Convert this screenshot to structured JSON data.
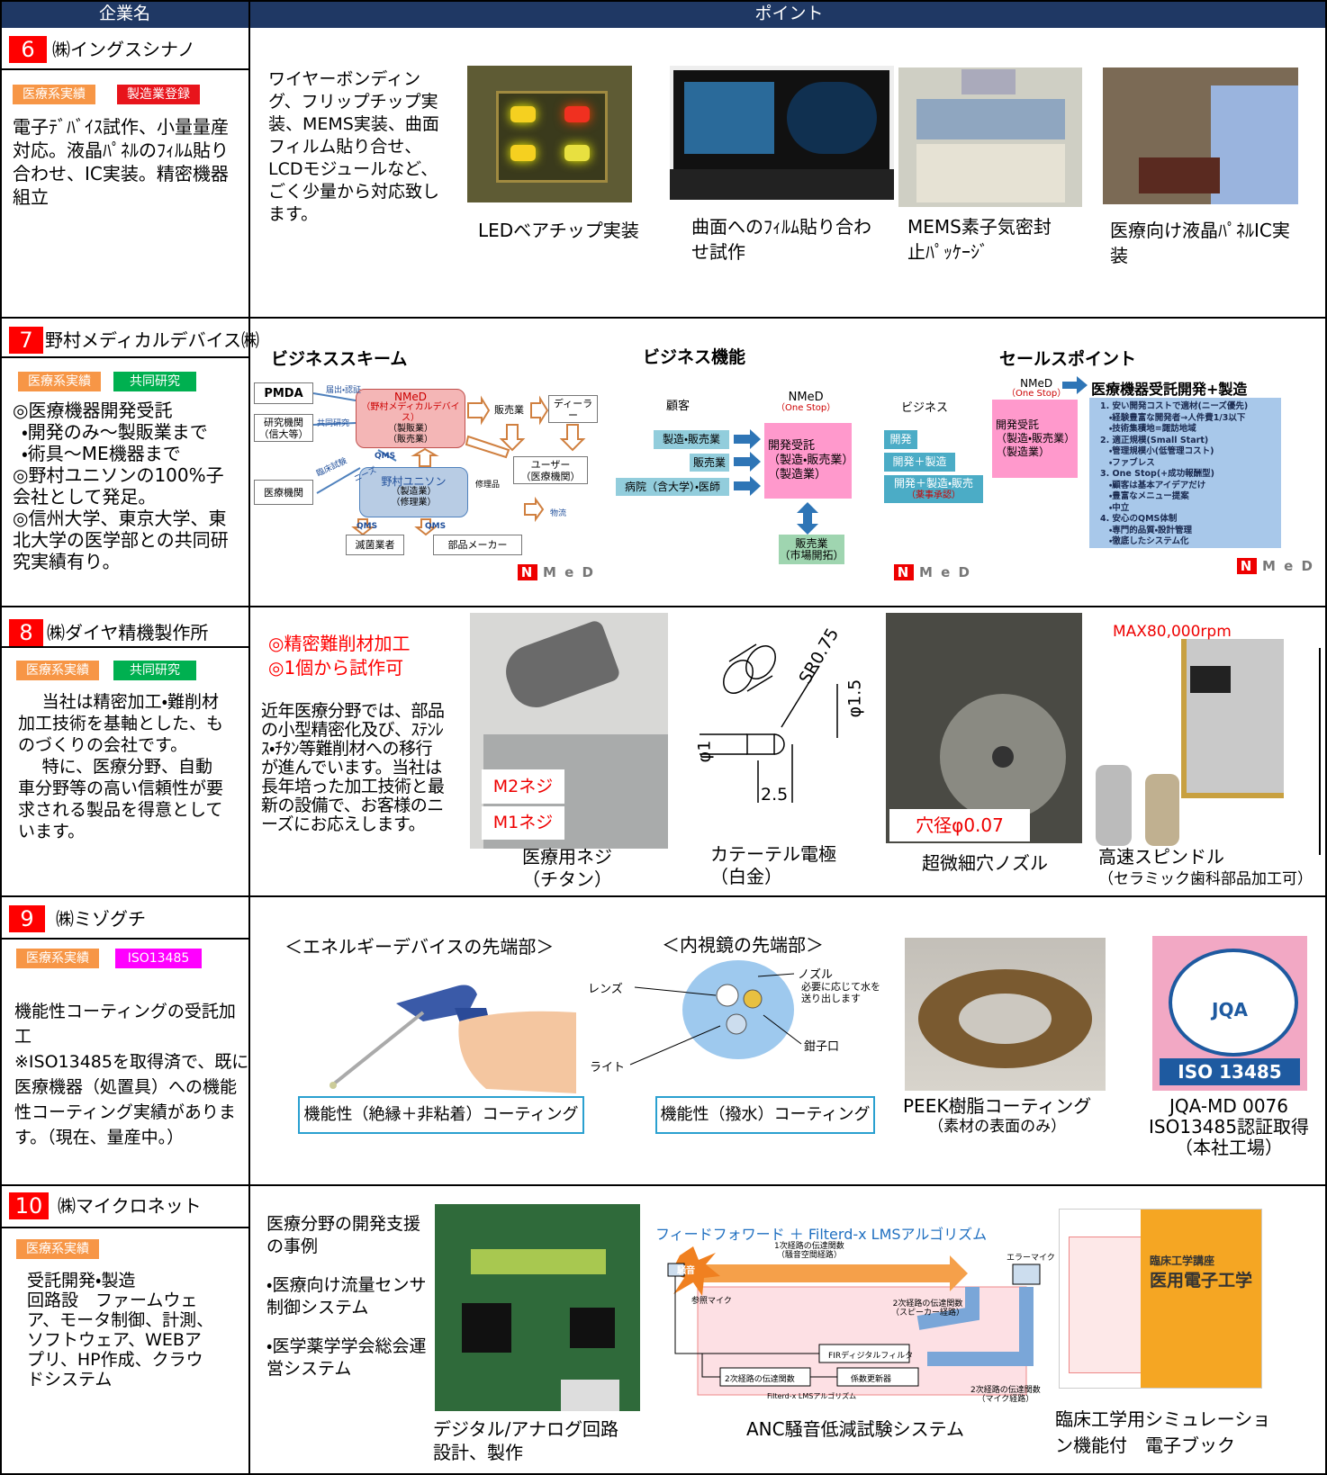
{
  "header": {
    "company": "企業名",
    "point": "ポイント"
  },
  "logo": {
    "n": "N",
    "med": "M e D"
  },
  "rows": [
    {
      "number": "6",
      "name": "㈱イングスシナノ",
      "tags": [
        "医療系実績",
        "製造業登録"
      ],
      "description": "電子ﾃﾞﾊﾞｲｽ試作、小量量産対応。液晶ﾊﾟﾈﾙのﾌｨﾙﾑ貼り合わせ、IC実装。精密機器組立",
      "text": "ワイヤーボンディング、フリップチップ実装、MEMS実装、曲面フィルム貼り合せ、 LCDモジュールなど、ごく少量から対応致します。",
      "captions": [
        "LEDベアチップ実装",
        "曲面へのﾌｨﾙﾑ貼り合わせ試作",
        "MEMS素子気密封止ﾊﾟｯｹｰｼﾞ",
        "医療向け液晶ﾊﾟﾈﾙIC実装"
      ]
    },
    {
      "number": "7",
      "name": "野村メディカルデバイス㈱",
      "tags": [
        "医療系実績",
        "共同研究"
      ],
      "description": [
        "◎医療機器開発受託",
        "・開発のみ～製販業まで",
        "・術具～ME機器まで",
        "◎野村ユニソンの100%子会社として発足。",
        "◎信州大学、東京大学、東北大学の医学部との共同研究実績有り。"
      ],
      "headings": [
        "ビジネススキーム",
        "ビジネス機能",
        "セールスポイント"
      ],
      "scheme": {
        "pmda": "PMDA",
        "research": [
          "研究機関",
          "（信大等）"
        ],
        "hospital": "医療機関",
        "nmed": [
          "NMeD",
          "（野村メディカルデバイス）",
          "（製販業）",
          "（販売業）"
        ],
        "unison": [
          "野村ユニソン",
          "（製造業）",
          "（修理業）"
        ],
        "sales": "販売業",
        "dealer": "ディーラー",
        "user": [
          "ユーザー",
          "（医療機関）"
        ],
        "sterilizer": "滅菌業者",
        "parts": "部品メーカー",
        "labels": [
          "届出・認証",
          "共同研究",
          "臨床試験",
          "ニーズ",
          "QMS",
          "修理品",
          "物流",
          "QMS",
          "QMS"
        ]
      },
      "function": {
        "customer": "顧客",
        "nmed": [
          "NMeD",
          "（One Stop）"
        ],
        "business": "ビジネス",
        "customers": [
          "製造・販売業",
          "販売業",
          "病院（含大学）・医師"
        ],
        "service": [
          "開発受託",
          "（製造・販売業）",
          "（製造業）"
        ],
        "outputs": [
          "開発",
          "開発＋製造",
          "開発＋製造・販売"
        ],
        "approval": "（薬事承認）",
        "market": [
          "販売業",
          "（市場開拓）"
        ]
      },
      "sales": {
        "nmed": [
          "NMeD",
          "（One Stop）"
        ],
        "headline": "医療機器受託開発+製造",
        "service": [
          "開発受託",
          "（製造・販売業）",
          "（製造業）"
        ],
        "points": [
          "1. 安い開発コストで適材(ニーズ優先)",
          "・経験豊富な開発者→人件費1/3以下",
          "・技術集積地=諏訪地域",
          "2. 適正規模(Small Start)",
          "・管理規模小(低管理コスト)",
          "・ファブレス",
          "3. One Stop(+成功報酬型)",
          "・顧客は基本アイデアだけ",
          "・豊富なメニュー提案",
          "・中立",
          "4. 安心のQMS体制",
          "・専門的品質・設計管理",
          "・徹底したシステム化"
        ]
      }
    },
    {
      "number": "8",
      "name": "㈱ダイヤ精機製作所",
      "tags": [
        "医療系実績",
        "共同研究"
      ],
      "description": [
        "当社は精密加工・難削材加工技術を基軸とした、ものづくりの会社です。",
        "特に、医療分野、自動車分野等の高い信頼性が要求される製品を得意としています。"
      ],
      "highlights": [
        "◎精密難削材加工",
        "◎1個から試作可"
      ],
      "text": "近年医療分野では、部品の小型精密化及び、ｽﾃﾝﾚｽ・ﾁﾀﾝ等難削材への移行が進んでいます。当社は長年培った加工技術と最新の設備で、お客様のニーズにお応えします。",
      "labels": [
        "M2ネジ",
        "M1ネジ",
        "穴径φ0.07",
        "MAX80,000rpm"
      ],
      "dimensions": [
        "SR0.75",
        "φ1.5",
        "φ1",
        "2.5"
      ],
      "captions": [
        [
          "医療用ネジ",
          "（チタン）"
        ],
        [
          "カテーテル電極",
          "（白金）"
        ],
        [
          "超微細穴ノズル"
        ],
        [
          "高速スピンドル",
          "（セラミック歯科部品加工可）"
        ]
      ]
    },
    {
      "number": "9",
      "name": "㈱ミゾグチ",
      "tags": [
        "医療系実績",
        "ISO13485"
      ],
      "description": [
        "機能性コーティングの受託加工",
        "※ISO13485を取得済で、既に医療機器（処置具）への機能性コーティング実績があります。（現在、量産中。）"
      ],
      "headings": [
        "＜エネルギーデバイスの先端部＞",
        "＜内視鏡の先端部＞"
      ],
      "coatings": [
        "機能性（絶縁＋非粘着）コーティング",
        "機能性（撥水）コーティング"
      ],
      "endoscope_labels": [
        "レンズ",
        "ノズル",
        "必要に応じて水を送り出します",
        "ライト",
        "鉗子口"
      ],
      "logo": [
        "JQA",
        "ISO 13485"
      ],
      "captions": [
        [
          "PEEK樹脂コーティング",
          "（素材の表面のみ）"
        ],
        [
          "JQA-MD 0076",
          "ISO13485認証取得",
          "（本社工場）"
        ]
      ]
    },
    {
      "number": "10",
      "name": "㈱マイクロネット",
      "tags": [
        "医療系実績"
      ],
      "description": [
        "受託開発・製造",
        "回路設　ファームウェア、モータ制御、計測、ソフトウェア、WEBアプリ、HP作成、クラウドシステム"
      ],
      "text": [
        "医療分野の開発支援の事例",
        "・医療向け流量センサ制御システム",
        "・医学薬学学会総会運営システム"
      ],
      "anc": {
        "title": "フィードフォワード ＋ Filterd-x LMSアルゴリズム",
        "labels": [
          "1次経路の伝達関数",
          "（騒音空間経路）",
          "騒音",
          "エラーマイク",
          "参照マイク",
          "2次経路の伝達関数",
          "（スピーカー経路）",
          "FIRディジタルフィルタ",
          "2次経路の伝達関数",
          "係数更新器",
          "Filterd-x LMSアルゴリズム",
          "2次経路の伝達関数",
          "（マイク経路）"
        ]
      },
      "book": [
        "臨床工学講座",
        "医用電子工学"
      ],
      "captions": [
        [
          "デジタル/アナログ回路",
          "設計、製作"
        ],
        [
          "ANC騒音低減試験システム"
        ],
        [
          "臨床工学用シミュレーション機能付　電子ブック"
        ]
      ]
    }
  ]
}
